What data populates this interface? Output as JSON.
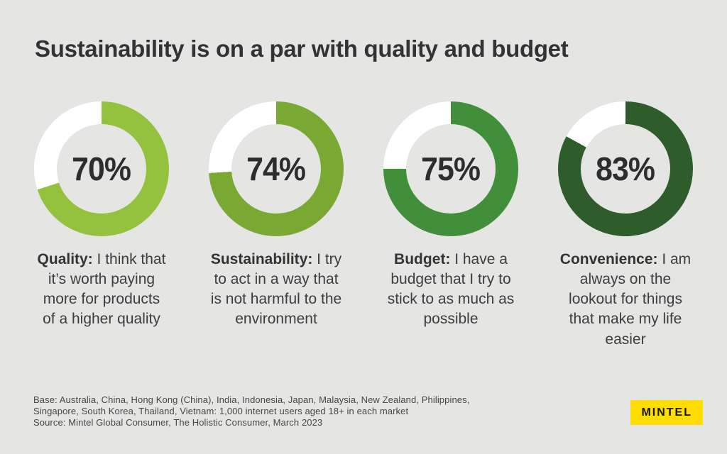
{
  "page": {
    "title": "Sustainability is on a par with quality and budget",
    "background_color": "#E5E5E3",
    "title_color": "#333333"
  },
  "chart_data": {
    "type": "pie",
    "subtype": "donut",
    "title": "Sustainability is on a par with quality and budget",
    "unit": "%",
    "start_angle": "12 o'clock, clockwise",
    "remainder_color": "#FFFFFF",
    "hole_color": "#E5E5E3",
    "legend_position": "caption below each donut",
    "series": [
      {
        "name": "Quality",
        "value": 70,
        "color": "#95C23E",
        "statement": "I think that it’s worth paying more for products of a higher quality"
      },
      {
        "name": "Sustainability",
        "value": 74,
        "color": "#7AA933",
        "statement": "I try to act in a way that is not harmful to the environment"
      },
      {
        "name": "Budget",
        "value": 75,
        "color": "#418F3B",
        "statement": "I have a budget that I try to stick to as much as possible"
      },
      {
        "name": "Convenience",
        "value": 83,
        "color": "#2F5C2B",
        "statement": "I am always on the lookout for things that make my life easier"
      }
    ]
  },
  "cards": [
    {
      "pct": 70,
      "pct_label": "70%",
      "color": "#95C23E",
      "term": "Quality:",
      "rest": " I think that it’s worth paying more for products of a higher quality"
    },
    {
      "pct": 74,
      "pct_label": "74%",
      "color": "#7AA933",
      "term": "Sustainability:",
      "rest": " I try to act in a way that is not harmful to the environment"
    },
    {
      "pct": 75,
      "pct_label": "75%",
      "color": "#418F3B",
      "term": "Budget:",
      "rest": " I have a budget that I try to stick to as much as possible"
    },
    {
      "pct": 83,
      "pct_label": "83%",
      "color": "#2F5C2B",
      "term": "Convenience:",
      "rest": " I am always on the lookout for things that make my life easier"
    }
  ],
  "footer": {
    "line1": "Base: Australia, China, Hong Kong (China), India, Indonesia, Japan, Malaysia, New Zealand, Philippines,",
    "line2": "Singapore, South Korea, Thailand, Vietnam: 1,000 internet users aged 18+ in each market",
    "line3": "Source: Mintel Global Consumer, The Holistic Consumer, March 2023"
  },
  "logo": {
    "label": "MINTEL",
    "background_color": "#FFDD00",
    "text_color": "#141414"
  }
}
